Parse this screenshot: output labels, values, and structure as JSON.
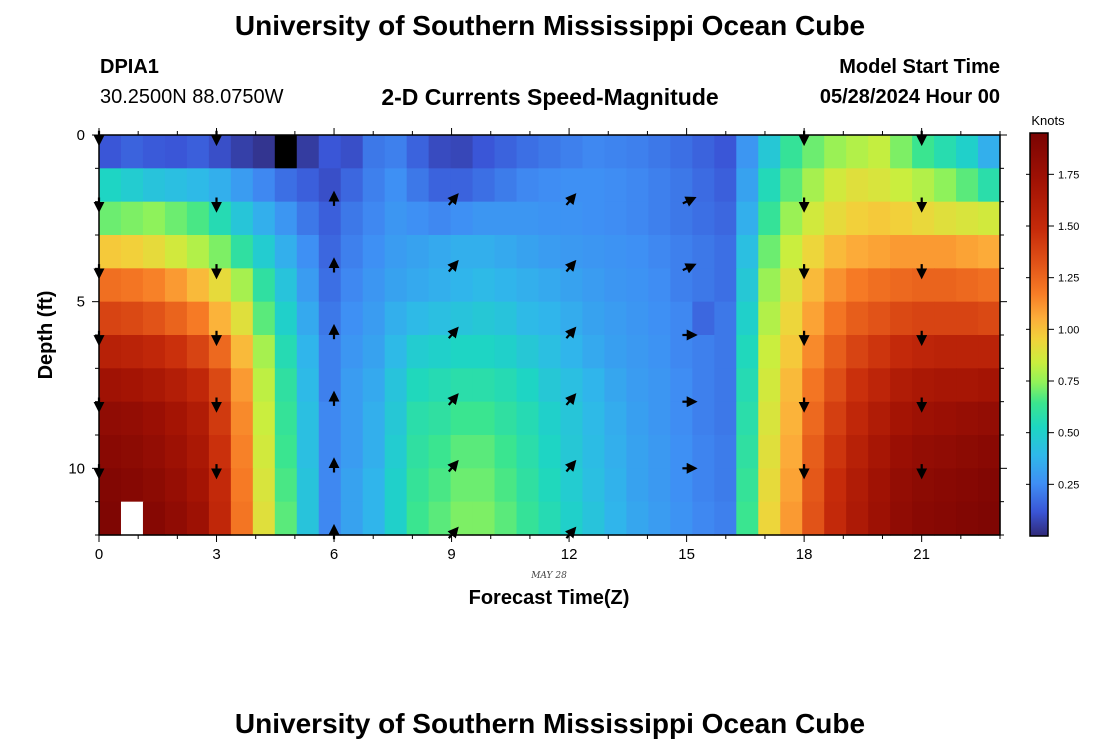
{
  "header": {
    "title": "University of Southern Mississippi Ocean Cube",
    "station_id": "DPIA1",
    "station_coords": "30.2500N  88.0750W",
    "subtitle": "2-D Currents Speed-Magnitude",
    "model_start_label": "Model Start Time",
    "model_start_value": "05/28/2024 Hour 00"
  },
  "footer": {
    "repeated_title": "University of Southern Mississippi Ocean Cube"
  },
  "chart_data": {
    "type": "heatmap",
    "title": "2-D Currents Speed-Magnitude",
    "xlabel": "Forecast Time(Z)",
    "xlabel_sub": "MAY 28",
    "ylabel": "Depth (ft)",
    "xlim": [
      0,
      23
    ],
    "ylim": [
      0,
      12
    ],
    "x_ticks": [
      0,
      3,
      6,
      9,
      12,
      15,
      18,
      21
    ],
    "y_ticks": [
      0,
      5,
      10
    ],
    "colorbar": {
      "unit_label": "Knots",
      "min": 0,
      "max": 1.95,
      "ticks": [
        "0.25",
        "0.50",
        "0.75",
        "1.00",
        "1.25",
        "1.50",
        "1.75"
      ],
      "tick_values": [
        0.25,
        0.5,
        0.75,
        1.0,
        1.25,
        1.5,
        1.75
      ]
    },
    "colormap": [
      [
        0.0,
        "#302a78"
      ],
      [
        0.06,
        "#3a55d6"
      ],
      [
        0.13,
        "#3f8ef4"
      ],
      [
        0.2,
        "#2fb8ea"
      ],
      [
        0.27,
        "#1dd6c2"
      ],
      [
        0.33,
        "#3be58e"
      ],
      [
        0.38,
        "#8ff25a"
      ],
      [
        0.43,
        "#c9ee3e"
      ],
      [
        0.49,
        "#f2d23a"
      ],
      [
        0.54,
        "#fcae3a"
      ],
      [
        0.6,
        "#f77d26"
      ],
      [
        0.68,
        "#e05117"
      ],
      [
        0.76,
        "#c62b0a"
      ],
      [
        0.88,
        "#a11204"
      ],
      [
        1.0,
        "#7a0403"
      ]
    ],
    "speed_knots": [
      [
        0.12,
        0.15,
        0.13,
        0.12,
        0.14,
        0.1,
        0.06,
        0.03,
        0.0,
        0.05,
        0.12,
        0.1,
        0.2,
        0.22,
        0.15,
        0.09,
        0.08,
        0.12,
        0.15,
        0.18,
        0.2,
        0.22,
        0.24,
        0.23,
        0.22,
        0.2,
        0.18,
        0.15,
        0.12,
        0.28,
        0.46,
        0.62,
        0.7,
        0.76,
        0.8,
        0.83,
        0.72,
        0.64,
        0.57,
        0.5,
        0.36
      ],
      [
        0.52,
        0.48,
        0.44,
        0.42,
        0.4,
        0.36,
        0.3,
        0.24,
        0.18,
        0.14,
        0.1,
        0.16,
        0.22,
        0.26,
        0.2,
        0.15,
        0.15,
        0.18,
        0.21,
        0.24,
        0.25,
        0.26,
        0.26,
        0.25,
        0.24,
        0.22,
        0.2,
        0.17,
        0.14,
        0.32,
        0.55,
        0.68,
        0.78,
        0.86,
        0.9,
        0.88,
        0.84,
        0.8,
        0.74,
        0.68,
        0.58
      ],
      [
        0.7,
        0.72,
        0.74,
        0.7,
        0.66,
        0.56,
        0.45,
        0.36,
        0.28,
        0.2,
        0.14,
        0.2,
        0.24,
        0.28,
        0.26,
        0.24,
        0.26,
        0.28,
        0.28,
        0.28,
        0.27,
        0.27,
        0.26,
        0.25,
        0.24,
        0.22,
        0.2,
        0.18,
        0.16,
        0.36,
        0.62,
        0.76,
        0.86,
        0.92,
        0.96,
        0.98,
        0.96,
        0.93,
        0.9,
        0.88,
        0.86
      ],
      [
        0.98,
        0.96,
        0.92,
        0.86,
        0.8,
        0.72,
        0.6,
        0.48,
        0.36,
        0.26,
        0.16,
        0.22,
        0.26,
        0.3,
        0.32,
        0.34,
        0.36,
        0.36,
        0.34,
        0.32,
        0.3,
        0.29,
        0.28,
        0.27,
        0.26,
        0.24,
        0.22,
        0.2,
        0.18,
        0.42,
        0.7,
        0.84,
        0.94,
        1.02,
        1.06,
        1.08,
        1.1,
        1.1,
        1.1,
        1.08,
        1.06
      ],
      [
        1.22,
        1.2,
        1.16,
        1.1,
        1.02,
        0.92,
        0.78,
        0.6,
        0.44,
        0.3,
        0.18,
        0.24,
        0.28,
        0.32,
        0.34,
        0.36,
        0.38,
        0.4,
        0.38,
        0.36,
        0.34,
        0.32,
        0.3,
        0.28,
        0.27,
        0.25,
        0.22,
        0.2,
        0.18,
        0.46,
        0.76,
        0.9,
        1.02,
        1.12,
        1.18,
        1.22,
        1.24,
        1.26,
        1.26,
        1.24,
        1.22
      ],
      [
        1.38,
        1.36,
        1.32,
        1.26,
        1.18,
        1.04,
        0.9,
        0.68,
        0.5,
        0.34,
        0.2,
        0.26,
        0.3,
        0.36,
        0.4,
        0.42,
        0.44,
        0.46,
        0.44,
        0.4,
        0.38,
        0.35,
        0.32,
        0.3,
        0.28,
        0.26,
        0.24,
        0.16,
        0.2,
        0.5,
        0.8,
        0.94,
        1.08,
        1.2,
        1.28,
        1.32,
        1.36,
        1.38,
        1.38,
        1.38,
        1.36
      ],
      [
        1.58,
        1.56,
        1.52,
        1.46,
        1.38,
        1.24,
        1.02,
        0.78,
        0.56,
        0.38,
        0.22,
        0.28,
        0.32,
        0.4,
        0.48,
        0.5,
        0.52,
        0.52,
        0.5,
        0.46,
        0.42,
        0.38,
        0.34,
        0.31,
        0.29,
        0.27,
        0.24,
        0.22,
        0.2,
        0.54,
        0.84,
        0.98,
        1.14,
        1.28,
        1.38,
        1.44,
        1.5,
        1.54,
        1.56,
        1.56,
        1.56
      ],
      [
        1.72,
        1.7,
        1.66,
        1.6,
        1.52,
        1.36,
        1.1,
        0.82,
        0.6,
        0.4,
        0.22,
        0.3,
        0.34,
        0.44,
        0.54,
        0.56,
        0.58,
        0.58,
        0.56,
        0.52,
        0.46,
        0.42,
        0.38,
        0.33,
        0.3,
        0.28,
        0.25,
        0.22,
        0.2,
        0.56,
        0.86,
        1.02,
        1.2,
        1.34,
        1.46,
        1.54,
        1.62,
        1.66,
        1.68,
        1.68,
        1.7
      ],
      [
        1.82,
        1.8,
        1.76,
        1.7,
        1.62,
        1.42,
        1.14,
        0.84,
        0.62,
        0.42,
        0.24,
        0.3,
        0.36,
        0.46,
        0.58,
        0.6,
        0.64,
        0.64,
        0.6,
        0.56,
        0.5,
        0.45,
        0.4,
        0.35,
        0.31,
        0.28,
        0.25,
        0.22,
        0.2,
        0.58,
        0.88,
        1.04,
        1.24,
        1.4,
        1.52,
        1.62,
        1.7,
        1.74,
        1.76,
        1.78,
        1.8
      ],
      [
        1.86,
        1.84,
        1.8,
        1.74,
        1.66,
        1.46,
        1.16,
        0.86,
        0.64,
        0.42,
        0.24,
        0.3,
        0.36,
        0.48,
        0.6,
        0.64,
        0.68,
        0.68,
        0.64,
        0.58,
        0.52,
        0.46,
        0.41,
        0.36,
        0.32,
        0.29,
        0.26,
        0.23,
        0.21,
        0.6,
        0.9,
        1.06,
        1.28,
        1.44,
        1.58,
        1.68,
        1.76,
        1.8,
        1.82,
        1.84,
        1.86
      ],
      [
        1.9,
        1.88,
        1.84,
        1.78,
        1.7,
        1.5,
        1.18,
        0.88,
        0.66,
        0.44,
        0.24,
        0.32,
        0.38,
        0.5,
        0.62,
        0.66,
        0.7,
        0.7,
        0.66,
        0.6,
        0.54,
        0.48,
        0.42,
        0.37,
        0.32,
        0.29,
        0.26,
        0.23,
        0.21,
        0.62,
        0.92,
        1.08,
        1.3,
        1.48,
        1.62,
        1.72,
        1.8,
        1.84,
        1.86,
        1.88,
        1.9
      ],
      [
        1.92,
        1.9,
        1.88,
        1.82,
        1.74,
        1.52,
        1.2,
        0.9,
        0.68,
        0.44,
        0.24,
        0.32,
        0.38,
        0.5,
        0.64,
        0.68,
        0.72,
        0.72,
        0.68,
        0.62,
        0.56,
        0.5,
        0.44,
        0.38,
        0.33,
        0.3,
        0.27,
        0.24,
        0.22,
        0.64,
        0.94,
        1.1,
        1.32,
        1.5,
        1.64,
        1.74,
        1.82,
        1.86,
        1.88,
        1.9,
        1.92
      ]
    ],
    "masked_cells": [
      {
        "row": 0,
        "col": 8
      },
      {
        "row": 11,
        "col": 1
      }
    ],
    "vectors": [
      {
        "t": 0,
        "d": 0,
        "dir": "S"
      },
      {
        "t": 3,
        "d": 0,
        "dir": "S"
      },
      {
        "t": 18,
        "d": 0,
        "dir": "S"
      },
      {
        "t": 21,
        "d": 0,
        "dir": "S"
      },
      {
        "t": 0,
        "d": 2,
        "dir": "S"
      },
      {
        "t": 3,
        "d": 2,
        "dir": "S"
      },
      {
        "t": 6,
        "d": 2,
        "dir": "N"
      },
      {
        "t": 9,
        "d": 2,
        "dir": "NE"
      },
      {
        "t": 12,
        "d": 2,
        "dir": "NE"
      },
      {
        "t": 15,
        "d": 2,
        "dir": "ENE"
      },
      {
        "t": 18,
        "d": 2,
        "dir": "S"
      },
      {
        "t": 21,
        "d": 2,
        "dir": "S"
      },
      {
        "t": 0,
        "d": 4,
        "dir": "S"
      },
      {
        "t": 3,
        "d": 4,
        "dir": "S"
      },
      {
        "t": 6,
        "d": 4,
        "dir": "N"
      },
      {
        "t": 9,
        "d": 4,
        "dir": "NE"
      },
      {
        "t": 12,
        "d": 4,
        "dir": "NE"
      },
      {
        "t": 15,
        "d": 4,
        "dir": "ENE"
      },
      {
        "t": 18,
        "d": 4,
        "dir": "S"
      },
      {
        "t": 21,
        "d": 4,
        "dir": "S"
      },
      {
        "t": 0,
        "d": 6,
        "dir": "S"
      },
      {
        "t": 3,
        "d": 6,
        "dir": "S"
      },
      {
        "t": 6,
        "d": 6,
        "dir": "N"
      },
      {
        "t": 9,
        "d": 6,
        "dir": "NE"
      },
      {
        "t": 12,
        "d": 6,
        "dir": "NE"
      },
      {
        "t": 15,
        "d": 6,
        "dir": "E"
      },
      {
        "t": 18,
        "d": 6,
        "dir": "S"
      },
      {
        "t": 21,
        "d": 6,
        "dir": "S"
      },
      {
        "t": 0,
        "d": 8,
        "dir": "S"
      },
      {
        "t": 3,
        "d": 8,
        "dir": "S"
      },
      {
        "t": 6,
        "d": 8,
        "dir": "N"
      },
      {
        "t": 9,
        "d": 8,
        "dir": "NE"
      },
      {
        "t": 12,
        "d": 8,
        "dir": "NE"
      },
      {
        "t": 15,
        "d": 8,
        "dir": "E"
      },
      {
        "t": 18,
        "d": 8,
        "dir": "S"
      },
      {
        "t": 21,
        "d": 8,
        "dir": "S"
      },
      {
        "t": 0,
        "d": 10,
        "dir": "S"
      },
      {
        "t": 3,
        "d": 10,
        "dir": "S"
      },
      {
        "t": 6,
        "d": 10,
        "dir": "N"
      },
      {
        "t": 9,
        "d": 10,
        "dir": "NE"
      },
      {
        "t": 12,
        "d": 10,
        "dir": "NE"
      },
      {
        "t": 15,
        "d": 10,
        "dir": "E"
      },
      {
        "t": 18,
        "d": 10,
        "dir": "S"
      },
      {
        "t": 21,
        "d": 10,
        "dir": "S"
      },
      {
        "t": 6,
        "d": 12,
        "dir": "N"
      },
      {
        "t": 9,
        "d": 12,
        "dir": "NE"
      },
      {
        "t": 12,
        "d": 12,
        "dir": "NE"
      }
    ]
  }
}
